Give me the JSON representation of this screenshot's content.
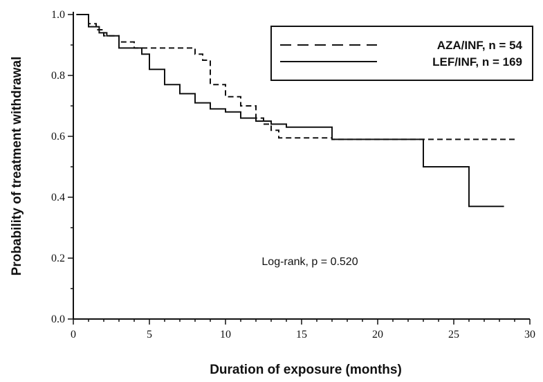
{
  "chart_data": {
    "type": "line",
    "xlabel": "Duration of exposure  (months)",
    "ylabel": "Probability of treatment withdrawal",
    "xlim": [
      0,
      30
    ],
    "ylim": [
      0,
      1.0
    ],
    "x_ticks": [
      0,
      5,
      10,
      15,
      20,
      25,
      30
    ],
    "x_tick_labels": [
      "0",
      "5",
      "10",
      "15",
      "20",
      "25",
      "30"
    ],
    "y_ticks": [
      0,
      0.2,
      0.4,
      0.6,
      0.8,
      1.0
    ],
    "y_tick_labels": [
      "0.0",
      "0.2",
      "0.4",
      "0.6",
      "0.8",
      "1.0"
    ],
    "grid": false,
    "legend_position": "top-right",
    "annotation": "Log-rank, p = 0.520",
    "series": [
      {
        "name": "AZA/INF, n = 54",
        "style": "dashed",
        "steps": [
          [
            0.2,
            1.0
          ],
          [
            1.0,
            0.97
          ],
          [
            1.5,
            0.95
          ],
          [
            2.0,
            0.93
          ],
          [
            3.0,
            0.91
          ],
          [
            4.0,
            0.89
          ],
          [
            8.0,
            0.87
          ],
          [
            8.5,
            0.85
          ],
          [
            9.0,
            0.77
          ],
          [
            10.0,
            0.73
          ],
          [
            11.0,
            0.7
          ],
          [
            12.0,
            0.66
          ],
          [
            12.5,
            0.64
          ],
          [
            13.0,
            0.62
          ],
          [
            13.5,
            0.595
          ],
          [
            17.0,
            0.59
          ],
          [
            29.0,
            0.59
          ]
        ]
      },
      {
        "name": "LEF/INF, n = 169",
        "style": "solid",
        "steps": [
          [
            0.2,
            1.0
          ],
          [
            1.0,
            0.96
          ],
          [
            1.7,
            0.94
          ],
          [
            2.2,
            0.93
          ],
          [
            3.0,
            0.89
          ],
          [
            4.5,
            0.87
          ],
          [
            5.0,
            0.82
          ],
          [
            6.0,
            0.77
          ],
          [
            7.0,
            0.74
          ],
          [
            8.0,
            0.71
          ],
          [
            9.0,
            0.69
          ],
          [
            10.0,
            0.68
          ],
          [
            11.0,
            0.66
          ],
          [
            12.0,
            0.65
          ],
          [
            13.0,
            0.64
          ],
          [
            14.0,
            0.63
          ],
          [
            17.0,
            0.59
          ],
          [
            23.0,
            0.5
          ],
          [
            26.0,
            0.37
          ],
          [
            28.3,
            0.37
          ]
        ]
      }
    ]
  }
}
